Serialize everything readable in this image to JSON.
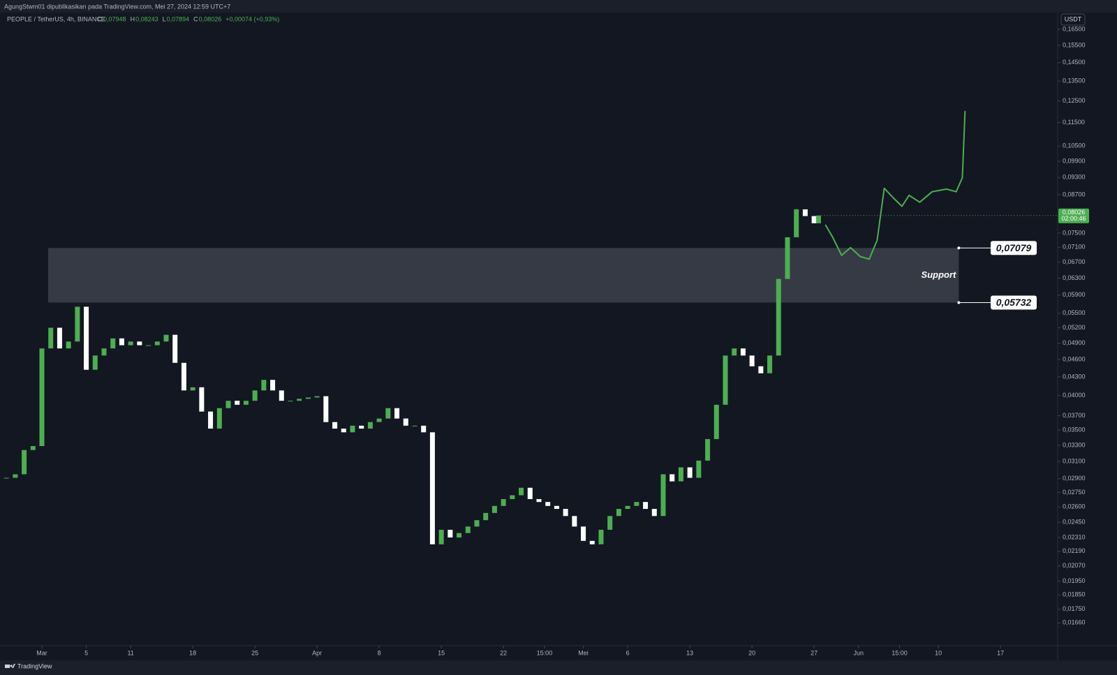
{
  "header": {
    "author": "AgungStwm01 dipublikasikan pada TradingView.com, Mei 27, 2024 12:59 UTC+7",
    "ohlc": [
      {
        "key": "O",
        "value": "0,07948"
      },
      {
        "key": "H",
        "value": "0,08243"
      },
      {
        "key": "L",
        "value": "0,07894"
      },
      {
        "key": "C",
        "value": "0,08026"
      }
    ],
    "change": "+0,00074 (+0,93%)",
    "currency": "USDT"
  },
  "footer": {
    "brand": "TradingView"
  },
  "chart_data": {
    "type": "candlestick",
    "log_scale": true,
    "background": "#131722",
    "up_color": "#4caf50",
    "down_color": "#ffffff",
    "series": [
      {
        "name": "PEOPLE / TetherUS, 4h, BINANCE",
        "x": [
          -4,
          -3,
          -2,
          -1,
          0,
          1,
          2,
          3,
          4,
          5,
          6,
          7,
          8,
          9,
          10,
          11,
          12,
          13,
          14,
          15,
          16,
          17,
          18,
          19,
          20,
          21,
          22,
          23,
          24,
          25,
          26,
          27,
          28,
          29,
          30,
          31,
          32,
          33,
          34,
          35,
          36,
          37,
          38,
          39,
          40,
          41,
          42,
          43,
          44,
          45,
          46,
          47,
          48,
          49,
          50,
          51,
          52,
          53,
          54,
          55,
          56,
          57,
          58,
          59,
          60,
          61,
          62,
          63,
          64,
          65,
          66,
          67,
          68,
          69,
          70,
          71,
          72,
          73,
          74,
          75,
          76,
          77,
          78,
          79,
          80,
          81,
          82,
          83,
          84,
          85,
          86,
          87,
          87.5
        ],
        "values": [
          0.0291,
          0.0295,
          0.0324,
          0.0329,
          0.048,
          0.052,
          0.048,
          0.0493,
          0.0564,
          0.0442,
          0.0467,
          0.048,
          0.0499,
          0.0486,
          0.0493,
          0.0486,
          0.0486,
          0.0493,
          0.0506,
          0.0454,
          0.0408,
          0.0413,
          0.0376,
          0.0352,
          0.0381,
          0.0392,
          0.0386,
          0.0392,
          0.0408,
          0.0425,
          0.0408,
          0.0392,
          0.0392,
          0.0395,
          0.0397,
          0.0399,
          0.0361,
          0.0352,
          0.0347,
          0.0356,
          0.0352,
          0.0361,
          0.0366,
          0.0381,
          0.0366,
          0.0356,
          0.0356,
          0.0347,
          0.0225,
          0.0238,
          0.0231,
          0.0235,
          0.0241,
          0.0247,
          0.0254,
          0.0261,
          0.0268,
          0.0272,
          0.028,
          0.0268,
          0.0265,
          0.0261,
          0.0258,
          0.0251,
          0.0241,
          0.0228,
          0.0225,
          0.0238,
          0.0251,
          0.0258,
          0.0261,
          0.0265,
          0.0258,
          0.0251,
          0.0295,
          0.0287,
          0.0303,
          0.0291,
          0.0311,
          0.0338,
          0.0386,
          0.0467,
          0.048,
          0.0467,
          0.0448,
          0.0436,
          0.0467,
          0.0628,
          0.0738,
          0.0822,
          0.0801,
          0.0779,
          0.08026
        ]
      },
      {
        "type": "line",
        "color": "#4caf50",
        "x": [
          88.3,
          89.1,
          90.1,
          91.1,
          92.2,
          93.2,
          94.1,
          94.9,
          96.0,
          96.9,
          97.7,
          98.9,
          100.3,
          101.9,
          103.0,
          103.7,
          104.0
        ],
        "values": [
          0.0773,
          0.0738,
          0.0688,
          0.0709,
          0.0685,
          0.0678,
          0.0729,
          0.0892,
          0.0857,
          0.0832,
          0.0868,
          0.0845,
          0.088,
          0.0889,
          0.088,
          0.0929,
          0.12
        ]
      }
    ],
    "last_price": {
      "value": 0.08026,
      "label": "0,08026",
      "countdown": "02:00:46"
    },
    "zone": {
      "label": "Support",
      "color": "#363a45",
      "x": [
        0.7,
        103.3
      ],
      "y": [
        0.05732,
        0.07079
      ]
    },
    "annotations": [
      {
        "value": 0.07079,
        "label": "0,07079"
      },
      {
        "value": 0.05732,
        "label": "0,05732"
      }
    ],
    "xlim": [
      -4.72,
      114.44
    ],
    "xticks": [
      {
        "value": 0,
        "label": "Mar"
      },
      5,
      {
        "value": 10,
        "label": "11"
      },
      {
        "value": 17,
        "label": "18"
      },
      {
        "value": 24,
        "label": "25"
      },
      {
        "value": 31,
        "label": "Apr"
      },
      {
        "value": 38,
        "label": "8"
      },
      {
        "value": 45,
        "label": "15"
      },
      {
        "value": 52,
        "label": "22"
      },
      {
        "value": 56.625,
        "label": "15:00"
      },
      {
        "value": 61,
        "label": "Mei"
      },
      {
        "value": 66,
        "label": "6"
      },
      {
        "value": 73,
        "label": "13"
      },
      {
        "value": 80,
        "label": "20"
      },
      {
        "value": 87,
        "label": "27"
      },
      {
        "value": 92,
        "label": "Jun"
      },
      {
        "value": 96.625,
        "label": "15:00"
      },
      {
        "value": 101,
        "label": "10"
      },
      {
        "value": 108,
        "label": "17"
      }
    ],
    "ylim": [
      0.0152,
      0.176
    ],
    "yticks": [
      {
        "value": 0.165,
        "label": "0,16500"
      },
      {
        "value": 0.155,
        "label": "0,15500"
      },
      {
        "value": 0.145,
        "label": "0,14500"
      },
      {
        "value": 0.135,
        "label": "0,13500"
      },
      {
        "value": 0.125,
        "label": "0,12500"
      },
      {
        "value": 0.115,
        "label": "0,11500"
      },
      {
        "value": 0.105,
        "label": "0,10500"
      },
      {
        "value": 0.099,
        "label": "0,09900"
      },
      {
        "value": 0.093,
        "label": "0,09300"
      },
      {
        "value": 0.087,
        "label": "0,08700"
      },
      {
        "value": 0.075,
        "label": "0,07500"
      },
      {
        "value": 0.071,
        "label": "0,07100"
      },
      {
        "value": 0.067,
        "label": "0,06700"
      },
      {
        "value": 0.063,
        "label": "0,06300"
      },
      {
        "value": 0.059,
        "label": "0,05900"
      },
      {
        "value": 0.055,
        "label": "0,05500"
      },
      {
        "value": 0.052,
        "label": "0,05200"
      },
      {
        "value": 0.049,
        "label": "0,04900"
      },
      {
        "value": 0.046,
        "label": "0,04600"
      },
      {
        "value": 0.043,
        "label": "0,04300"
      },
      {
        "value": 0.04,
        "label": "0,04000"
      },
      {
        "value": 0.037,
        "label": "0,03700"
      },
      {
        "value": 0.035,
        "label": "0,03500"
      },
      {
        "value": 0.033,
        "label": "0,03300"
      },
      {
        "value": 0.031,
        "label": "0,03100"
      },
      {
        "value": 0.029,
        "label": "0,02900"
      },
      {
        "value": 0.0275,
        "label": "0,02750"
      },
      {
        "value": 0.026,
        "label": "0,02600"
      },
      {
        "value": 0.0245,
        "label": "0,02450"
      },
      {
        "value": 0.0231,
        "label": "0,02310"
      },
      {
        "value": 0.0219,
        "label": "0,02190"
      },
      {
        "value": 0.0207,
        "label": "0,02070"
      },
      {
        "value": 0.0195,
        "label": "0,01950"
      },
      {
        "value": 0.0185,
        "label": "0,01850"
      },
      {
        "value": 0.0175,
        "label": "0,01750"
      },
      {
        "value": 0.0166,
        "label": "0,01660"
      }
    ]
  }
}
